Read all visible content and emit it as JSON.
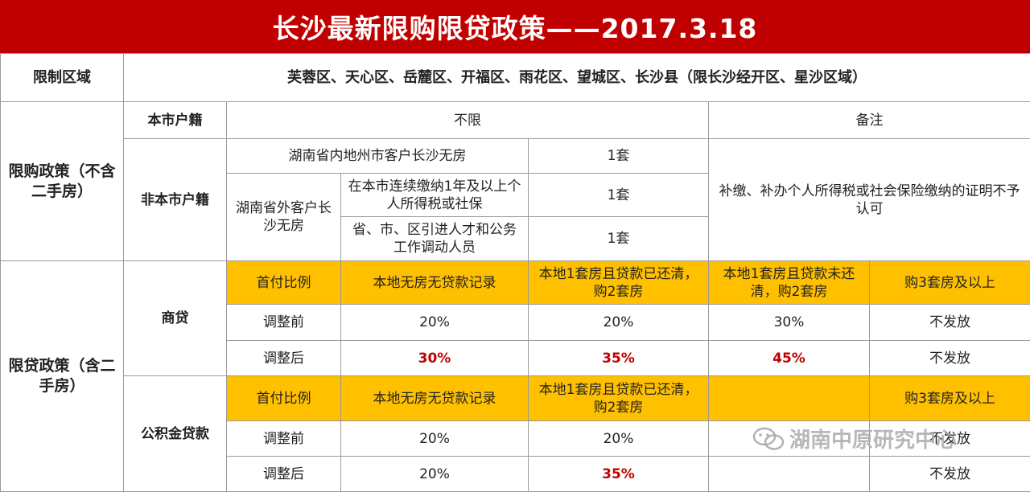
{
  "title": "长沙最新限购限贷政策——2017.3.18",
  "region": {
    "label": "限制区域",
    "value": "芙蓉区、天心区、岳麓区、开福区、雨花区、望城区、长沙县（限长沙经开区、星沙区域）"
  },
  "purchase": {
    "label": "限购政策（不含二手房）",
    "local_label": "本市户籍",
    "local_value": "不限",
    "remark_header": "备注",
    "nonlocal_label": "非本市户籍",
    "in_province": "湖南省内地州市客户长沙无房",
    "in_province_qty": "1套",
    "out_province": "湖南省外客户长沙无房",
    "tax_condition": "在本市连续缴纳1年及以上个人所得税或社保",
    "tax_qty": "1套",
    "talent_condition": "省、市、区引进人才和公务工作调动人员",
    "talent_qty": "1套",
    "remark": "补缴、补办个人所得税或社会保险缴纳的证明不予认可"
  },
  "loan": {
    "label": "限贷政策（含二手房）",
    "commercial": {
      "label": "商贷",
      "headers": [
        "首付比例",
        "本地无房无贷款记录",
        "本地1套房且贷款已还清，购2套房",
        "本地1套房且贷款未还清，购2套房",
        "购3套房及以上"
      ],
      "before": [
        "调整前",
        "20%",
        "20%",
        "30%",
        "不发放"
      ],
      "after": [
        "调整后",
        "30%",
        "35%",
        "45%",
        "不发放"
      ]
    },
    "fund": {
      "label": "公积金贷款",
      "headers": [
        "首付比例",
        "本地无房无贷款记录",
        "本地1套房且贷款已还清，购2套房",
        "",
        "购3套房及以上"
      ],
      "before": [
        "调整前",
        "20%",
        "20%",
        "",
        "不发放"
      ],
      "after": [
        "调整后",
        "20%",
        "35%",
        "",
        "不发放"
      ]
    }
  },
  "watermark": "湖南中原研究中心"
}
